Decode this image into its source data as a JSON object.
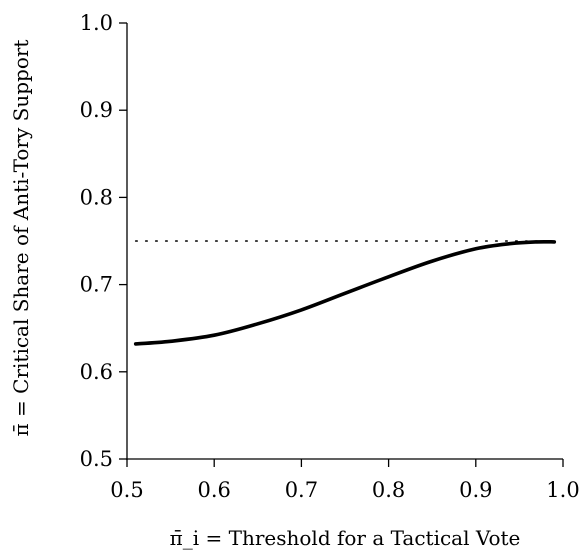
{
  "chart_data": {
    "type": "line",
    "xlabel": "π̄_i = Threshold for a Tactical Vote",
    "ylabel": "π̄ = Critical Share of Anti-Tory Support",
    "xlim": [
      0.5,
      1.0
    ],
    "ylim": [
      0.5,
      1.0
    ],
    "x_ticks": [
      0.5,
      0.6,
      0.7,
      0.8,
      0.9,
      1.0
    ],
    "x_tick_labels": [
      "0.5",
      "0.6",
      "0.7",
      "0.8",
      "0.9",
      "1.0"
    ],
    "y_ticks": [
      0.5,
      0.6,
      0.7,
      0.8,
      0.9,
      1.0
    ],
    "y_tick_labels": [
      "0.5",
      "0.6",
      "0.7",
      "0.8",
      "0.9",
      "1.0"
    ],
    "grid": false,
    "series": [
      {
        "style": "solid",
        "color": "#000000",
        "x": [
          0.51,
          0.55,
          0.6,
          0.65,
          0.7,
          0.75,
          0.8,
          0.85,
          0.9,
          0.94,
          0.97,
          0.99
        ],
        "y": [
          0.632,
          0.635,
          0.642,
          0.655,
          0.671,
          0.69,
          0.709,
          0.727,
          0.741,
          0.747,
          0.749,
          0.749
        ]
      },
      {
        "style": "dotted",
        "color": "#000000",
        "x": [
          0.51,
          0.99
        ],
        "y": [
          0.75,
          0.75
        ]
      }
    ]
  }
}
